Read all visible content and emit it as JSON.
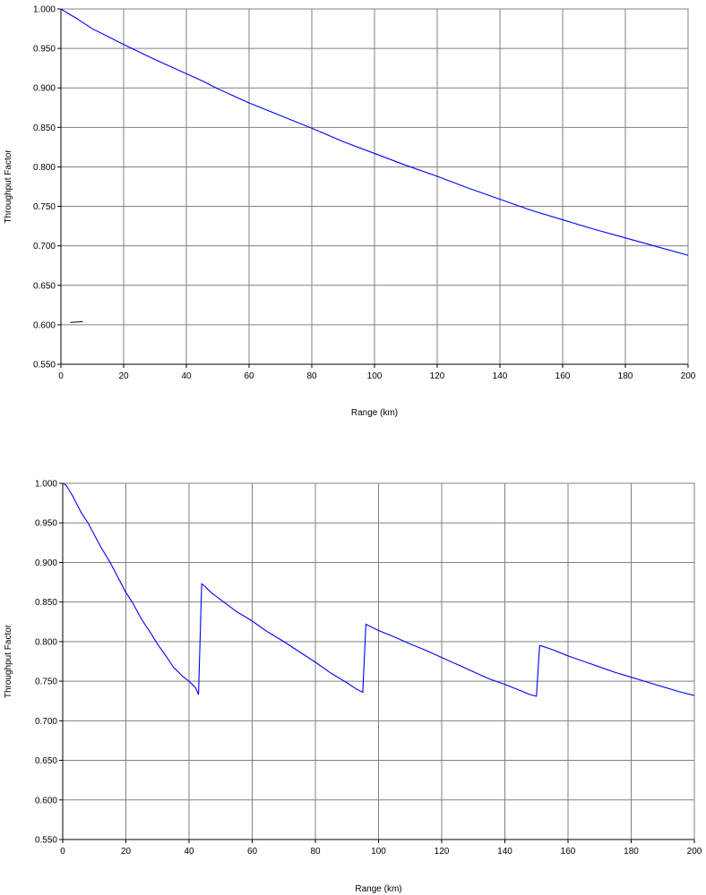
{
  "chart_data": [
    {
      "type": "line",
      "xlabel": "Range (km)",
      "ylabel": "Throughput Factor",
      "xlim": [
        0,
        200
      ],
      "ylim": [
        0.55,
        1.0
      ],
      "x_ticks": [
        "0",
        "20",
        "40",
        "60",
        "80",
        "100",
        "120",
        "140",
        "160",
        "180",
        "200"
      ],
      "y_ticks": [
        "0.550",
        "0.600",
        "0.650",
        "0.700",
        "0.750",
        "0.800",
        "0.850",
        "0.900",
        "0.950",
        "1.000"
      ],
      "grid": true,
      "legend": "none",
      "line_color": "#0000ff",
      "series": [
        {
          "x": [
            0,
            2,
            5,
            10,
            15,
            20,
            30,
            40,
            45,
            50,
            60,
            70,
            80,
            90,
            100,
            110,
            120,
            130,
            140,
            150,
            160,
            170,
            180,
            190,
            200
          ],
          "y": [
            1.0,
            0.995,
            0.988,
            0.975,
            0.965,
            0.955,
            0.936,
            0.918,
            0.909,
            0.899,
            0.881,
            0.865,
            0.849,
            0.832,
            0.817,
            0.802,
            0.788,
            0.773,
            0.759,
            0.745,
            0.733,
            0.721,
            0.71,
            0.699,
            0.688
          ]
        }
      ],
      "annotation_mark": {
        "x": [
          3,
          7
        ],
        "y": [
          0.603,
          0.604
        ]
      }
    },
    {
      "type": "line",
      "xlabel": "Range (km)",
      "ylabel": "Throughput Factor",
      "xlim": [
        0,
        200
      ],
      "ylim": [
        0.55,
        1.0
      ],
      "x_ticks": [
        "0",
        "20",
        "40",
        "60",
        "80",
        "100",
        "120",
        "140",
        "160",
        "180",
        "200"
      ],
      "y_ticks": [
        "0.550",
        "0.600",
        "0.650",
        "0.700",
        "0.750",
        "0.800",
        "0.850",
        "0.900",
        "0.950",
        "1.000"
      ],
      "grid": true,
      "legend": "none",
      "line_color": "#0000ff",
      "series": [
        {
          "x": [
            0,
            1,
            3,
            6,
            8,
            10,
            12,
            15,
            17,
            20,
            22,
            25,
            28,
            30,
            33,
            35,
            38,
            40,
            42,
            43,
            44,
            45,
            47,
            50,
            55,
            60,
            65,
            70,
            75,
            80,
            85,
            90,
            93,
            95,
            96,
            97,
            100,
            105,
            110,
            115,
            120,
            125,
            130,
            135,
            140,
            145,
            148,
            150,
            151,
            152,
            155,
            160,
            165,
            170,
            175,
            180,
            185,
            190,
            195,
            200
          ],
          "y": [
            1.0,
            0.998,
            0.985,
            0.962,
            0.95,
            0.935,
            0.92,
            0.9,
            0.885,
            0.862,
            0.85,
            0.828,
            0.81,
            0.797,
            0.78,
            0.768,
            0.756,
            0.75,
            0.742,
            0.733,
            0.873,
            0.87,
            0.862,
            0.853,
            0.838,
            0.826,
            0.812,
            0.8,
            0.787,
            0.774,
            0.76,
            0.748,
            0.74,
            0.736,
            0.822,
            0.82,
            0.814,
            0.806,
            0.797,
            0.789,
            0.78,
            0.771,
            0.762,
            0.753,
            0.746,
            0.738,
            0.733,
            0.731,
            0.795,
            0.794,
            0.79,
            0.782,
            0.775,
            0.768,
            0.761,
            0.755,
            0.749,
            0.743,
            0.737,
            0.732
          ]
        }
      ]
    }
  ]
}
